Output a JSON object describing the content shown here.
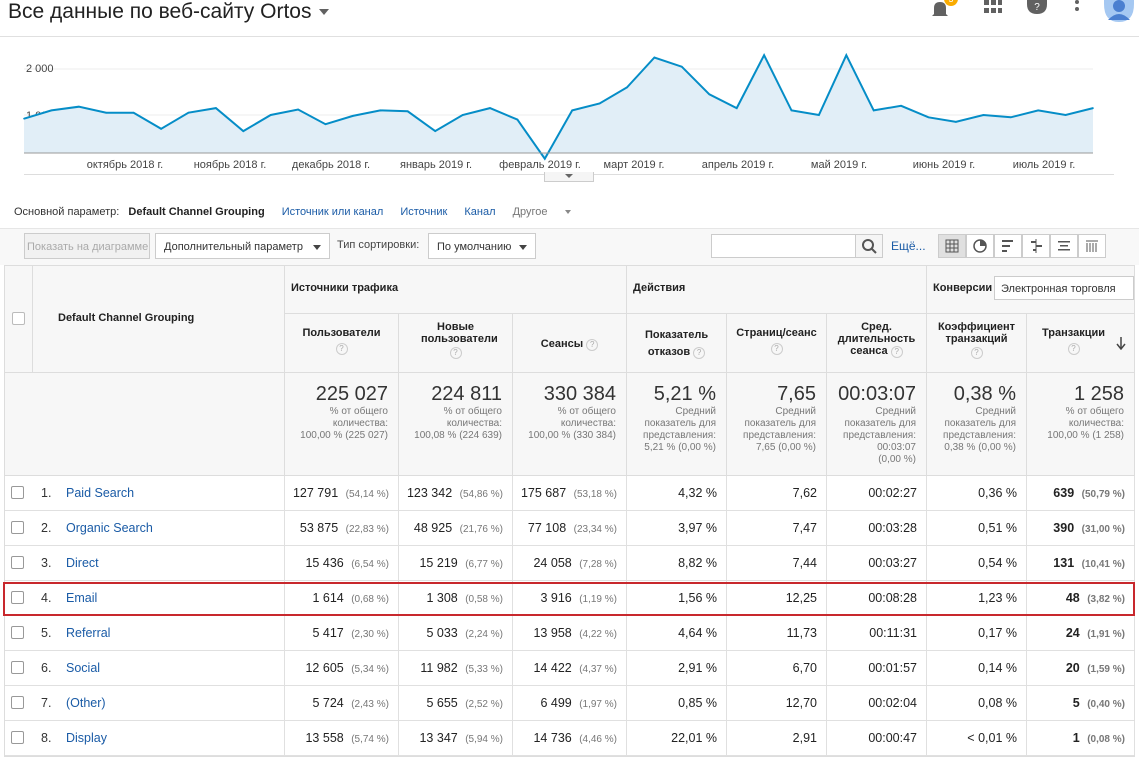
{
  "header": {
    "title": "Все данные по веб-сайту Ortos",
    "notification_count": "5",
    "icons": [
      "bell-icon",
      "apps-grid-icon",
      "help-icon",
      "more-vert-icon",
      "account-avatar-icon"
    ]
  },
  "chart": {
    "y_ticks": [
      "2 000",
      "1 000"
    ],
    "x_ticks": [
      "октябрь 2018 г.",
      "ноябрь 2018 г.",
      "декабрь 2018 г.",
      "январь 2019 г.",
      "февраль 2019 г.",
      "март 2019 г.",
      "апрель 2019 г.",
      "май 2019 г.",
      "июнь 2019 г.",
      "июль 2019 г."
    ],
    "line_color": "#058dc7",
    "fill_color": "#e1eef7"
  },
  "chart_data": {
    "type": "area",
    "title": "",
    "ylim": [
      0,
      2400
    ],
    "grid": true,
    "x": [
      "2018-09-17",
      "2018-09-25",
      "2018-10-03",
      "2018-10-11",
      "2018-10-19",
      "2018-10-27",
      "2018-11-04",
      "2018-11-12",
      "2018-11-20",
      "2018-11-28",
      "2018-12-06",
      "2018-12-14",
      "2018-12-22",
      "2018-12-30",
      "2019-01-07",
      "2019-01-15",
      "2019-01-23",
      "2019-01-31",
      "2019-02-08",
      "2019-02-16",
      "2019-02-24",
      "2019-03-04",
      "2019-03-12",
      "2019-03-20",
      "2019-03-28",
      "2019-04-05",
      "2019-04-13",
      "2019-04-21",
      "2019-04-29",
      "2019-05-07",
      "2019-05-15",
      "2019-05-23",
      "2019-05-31",
      "2019-06-08",
      "2019-06-16",
      "2019-06-24",
      "2019-07-02",
      "2019-07-10",
      "2019-07-18",
      "2019-07-26"
    ],
    "values": [
      920,
      1100,
      1180,
      1050,
      1050,
      700,
      1050,
      1150,
      650,
      1000,
      1120,
      800,
      980,
      1100,
      1080,
      650,
      1000,
      1150,
      900,
      50,
      1100,
      1250,
      1600,
      2250,
      2050,
      1450,
      1150,
      2300,
      1100,
      1000,
      2300,
      1100,
      1200,
      950,
      850,
      1000,
      950,
      1100,
      1000,
      1150
    ]
  },
  "primary_dimension": {
    "label": "Основной параметр:",
    "active": "Default Channel Grouping",
    "options": [
      "Источник или канал",
      "Источник",
      "Канал"
    ],
    "other": "Другое"
  },
  "toolbar": {
    "plot_button": "Показать на диаграмме",
    "secondary_dimension": "Дополнительный параметр",
    "sort_label": "Тип сортировки:",
    "sort_value": "По умолчанию",
    "search_placeholder": "",
    "more_link": "Ещё..."
  },
  "table": {
    "dimension_header": "Default Channel Grouping",
    "groups": {
      "acquisition": "Источники трафика",
      "behavior": "Действия",
      "conversions": "Конверсии",
      "conversion_select": "Электронная торговля"
    },
    "columns": [
      "Пользователи",
      "Новые пользователи",
      "Сеансы",
      "Показатель отказов",
      "Страниц/сеанс",
      "Сред. длительность сеанса",
      "Коэффициент транзакций",
      "Транзакции"
    ],
    "totals": [
      {
        "value": "225 027",
        "l1": "% от общего",
        "l2": "количества:",
        "l3": "100,00 % (225 027)",
        "l4": ""
      },
      {
        "value": "224 811",
        "l1": "% от общего",
        "l2": "количества:",
        "l3": "100,08 % (224 639)",
        "l4": ""
      },
      {
        "value": "330 384",
        "l1": "% от общего",
        "l2": "количества:",
        "l3": "100,00 % (330 384)",
        "l4": ""
      },
      {
        "value": "5,21 %",
        "l1": "Средний",
        "l2": "показатель для",
        "l3": "представления:",
        "l4": "5,21 % (0,00 %)"
      },
      {
        "value": "7,65",
        "l1": "Средний",
        "l2": "показатель для",
        "l3": "представления:",
        "l4": "7,65 (0,00 %)"
      },
      {
        "value": "00:03:07",
        "l1": "Средний",
        "l2": "показатель для",
        "l3": "представления:",
        "l4": "00:03:07",
        "l5": "(0,00 %)"
      },
      {
        "value": "0,38 %",
        "l1": "Средний",
        "l2": "показатель для",
        "l3": "представления:",
        "l4": "0,38 % (0,00 %)"
      },
      {
        "value": "1 258",
        "l1": "% от общего",
        "l2": "количества:",
        "l3": "100,00 % (1 258)",
        "l4": ""
      }
    ],
    "rows": [
      {
        "idx": "1.",
        "channel": "Paid Search",
        "users": "127 791",
        "users_pct": "(54,14 %)",
        "new_users": "123 342",
        "new_users_pct": "(54,86 %)",
        "sessions": "175 687",
        "sessions_pct": "(53,18 %)",
        "bounce": "4,32 %",
        "pages": "7,62",
        "duration": "00:02:27",
        "conv_rate": "0,36 %",
        "transactions": "639",
        "transactions_pct": "(50,79 %)"
      },
      {
        "idx": "2.",
        "channel": "Organic Search",
        "users": "53 875",
        "users_pct": "(22,83 %)",
        "new_users": "48 925",
        "new_users_pct": "(21,76 %)",
        "sessions": "77 108",
        "sessions_pct": "(23,34 %)",
        "bounce": "3,97 %",
        "pages": "7,47",
        "duration": "00:03:28",
        "conv_rate": "0,51 %",
        "transactions": "390",
        "transactions_pct": "(31,00 %)"
      },
      {
        "idx": "3.",
        "channel": "Direct",
        "users": "15 436",
        "users_pct": "(6,54 %)",
        "new_users": "15 219",
        "new_users_pct": "(6,77 %)",
        "sessions": "24 058",
        "sessions_pct": "(7,28 %)",
        "bounce": "8,82 %",
        "pages": "7,44",
        "duration": "00:03:27",
        "conv_rate": "0,54 %",
        "transactions": "131",
        "transactions_pct": "(10,41 %)"
      },
      {
        "idx": "4.",
        "channel": "Email",
        "users": "1 614",
        "users_pct": "(0,68 %)",
        "new_users": "1 308",
        "new_users_pct": "(0,58 %)",
        "sessions": "3 916",
        "sessions_pct": "(1,19 %)",
        "bounce": "1,56 %",
        "pages": "12,25",
        "duration": "00:08:28",
        "conv_rate": "1,23 %",
        "transactions": "48",
        "transactions_pct": "(3,82 %)"
      },
      {
        "idx": "5.",
        "channel": "Referral",
        "users": "5 417",
        "users_pct": "(2,30 %)",
        "new_users": "5 033",
        "new_users_pct": "(2,24 %)",
        "sessions": "13 958",
        "sessions_pct": "(4,22 %)",
        "bounce": "4,64 %",
        "pages": "11,73",
        "duration": "00:11:31",
        "conv_rate": "0,17 %",
        "transactions": "24",
        "transactions_pct": "(1,91 %)"
      },
      {
        "idx": "6.",
        "channel": "Social",
        "users": "12 605",
        "users_pct": "(5,34 %)",
        "new_users": "11 982",
        "new_users_pct": "(5,33 %)",
        "sessions": "14 422",
        "sessions_pct": "(4,37 %)",
        "bounce": "2,91 %",
        "pages": "6,70",
        "duration": "00:01:57",
        "conv_rate": "0,14 %",
        "transactions": "20",
        "transactions_pct": "(1,59 %)"
      },
      {
        "idx": "7.",
        "channel": "(Other)",
        "users": "5 724",
        "users_pct": "(2,43 %)",
        "new_users": "5 655",
        "new_users_pct": "(2,52 %)",
        "sessions": "6 499",
        "sessions_pct": "(1,97 %)",
        "bounce": "0,85 %",
        "pages": "12,70",
        "duration": "00:02:04",
        "conv_rate": "0,08 %",
        "transactions": "5",
        "transactions_pct": "(0,40 %)"
      },
      {
        "idx": "8.",
        "channel": "Display",
        "users": "13 558",
        "users_pct": "(5,74 %)",
        "new_users": "13 347",
        "new_users_pct": "(5,94 %)",
        "sessions": "14 736",
        "sessions_pct": "(4,46 %)",
        "bounce": "22,01 %",
        "pages": "2,91",
        "duration": "00:00:47",
        "conv_rate": "< 0,01 %",
        "transactions": "1",
        "transactions_pct": "(0,08 %)"
      }
    ],
    "highlight_row": 4,
    "highlight_color": "#c8282d"
  }
}
